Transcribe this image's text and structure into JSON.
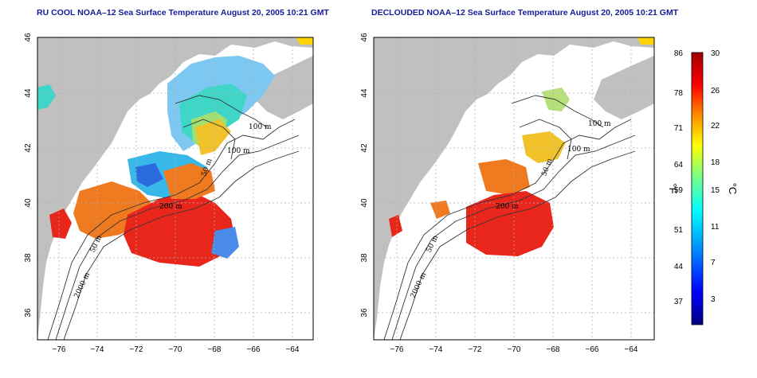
{
  "titles": {
    "left": "RU COOL NOAA–12 Sea Surface Temperature August 20, 2005 10:21 GMT",
    "right": "DECLOUDED NOAA–12 Sea Surface Temperature August 20, 2005 10:21 GMT"
  },
  "axes": {
    "x_ticks": [
      "−76",
      "−74",
      "−72",
      "−70",
      "−68",
      "−66",
      "−64"
    ],
    "y_ticks": [
      "46",
      "44",
      "42",
      "40",
      "38",
      "36"
    ]
  },
  "contour_labels": {
    "left": [
      "100 m",
      "100 m",
      "50 m",
      "200 m",
      "50 m",
      "2000 m"
    ],
    "right": [
      "100 m",
      "100 m",
      "50 m",
      "200 m",
      "50 m",
      "2000 m"
    ]
  },
  "colorbar": {
    "fahrenheit_ticks": [
      "86",
      "78",
      "71",
      "64",
      "59",
      "51",
      "44",
      "37"
    ],
    "celsius_ticks": [
      "30",
      "26",
      "22",
      "18",
      "15",
      "11",
      "7",
      "3"
    ],
    "fahrenheit_unit": "°F",
    "celsius_unit": "°C",
    "colors": [
      "#00007f",
      "#0000ff",
      "#007fff",
      "#00ffff",
      "#7fff7f",
      "#ffff00",
      "#ff7f00",
      "#ff0000",
      "#7f0000"
    ]
  },
  "colors": {
    "land": "#c0c0c0",
    "title": "#1a1a9c",
    "warm": "#e8261c"
  }
}
